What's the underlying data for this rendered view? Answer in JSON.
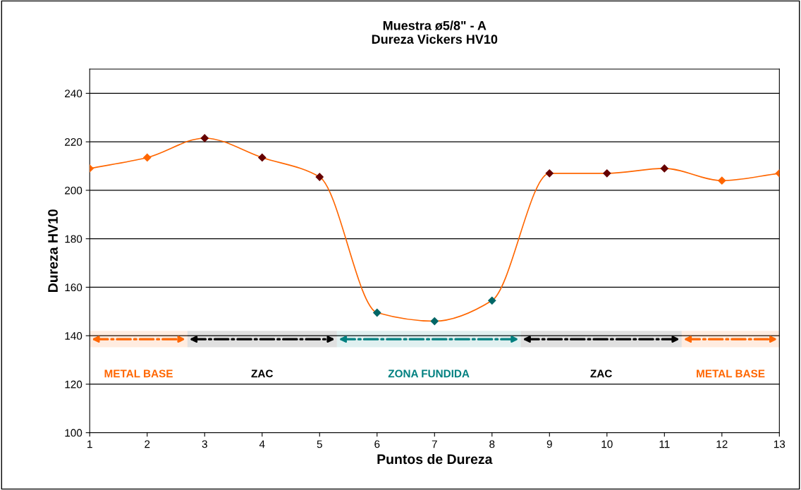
{
  "chart_data": {
    "type": "line",
    "title": "Muestra ø5/8\" - A\nDureza Vickers HV10",
    "xlabel": "Puntos de Dureza",
    "ylabel": "Dureza HV10",
    "x": [
      1,
      2,
      3,
      4,
      5,
      6,
      7,
      8,
      9,
      10,
      11,
      12,
      13
    ],
    "series": [
      {
        "color": "#ff6600",
        "values": [
          209,
          213.5,
          221.5,
          213.5,
          205.5,
          149.5,
          146,
          154.5,
          207,
          207,
          209,
          204,
          207
        ],
        "colors": [
          "#ff6600",
          "#ff6600",
          "#660000",
          "#660000",
          "#660000",
          "#006666",
          "#006666",
          "#006666",
          "#660000",
          "#660000",
          "#660000",
          "#ff6600",
          "#ff6600"
        ]
      }
    ],
    "marker": "diamond",
    "xlim": [
      1,
      13
    ],
    "xticks": [
      1,
      2,
      3,
      4,
      5,
      6,
      7,
      8,
      9,
      10,
      11,
      12,
      13
    ],
    "ylim": [
      100,
      250
    ],
    "yticks": [
      100,
      120,
      140,
      160,
      180,
      200,
      220,
      240
    ],
    "grid": "y",
    "bands": [
      {
        "axis": "x",
        "from": 1,
        "to": 2.7,
        "label": "METAL BASE",
        "color": "#ff6600"
      },
      {
        "axis": "x",
        "from": 2.7,
        "to": 5.3,
        "label": "ZAC",
        "color": "#000000"
      },
      {
        "axis": "x",
        "from": 5.3,
        "to": 8.5,
        "label": "ZONA FUNDIDA",
        "color": "#008080"
      },
      {
        "axis": "x",
        "from": 8.5,
        "to": 11.3,
        "label": "ZAC",
        "color": "#000000"
      },
      {
        "axis": "x",
        "from": 11.3,
        "to": 13,
        "label": "METAL BASE",
        "color": "#ff6600"
      }
    ]
  }
}
